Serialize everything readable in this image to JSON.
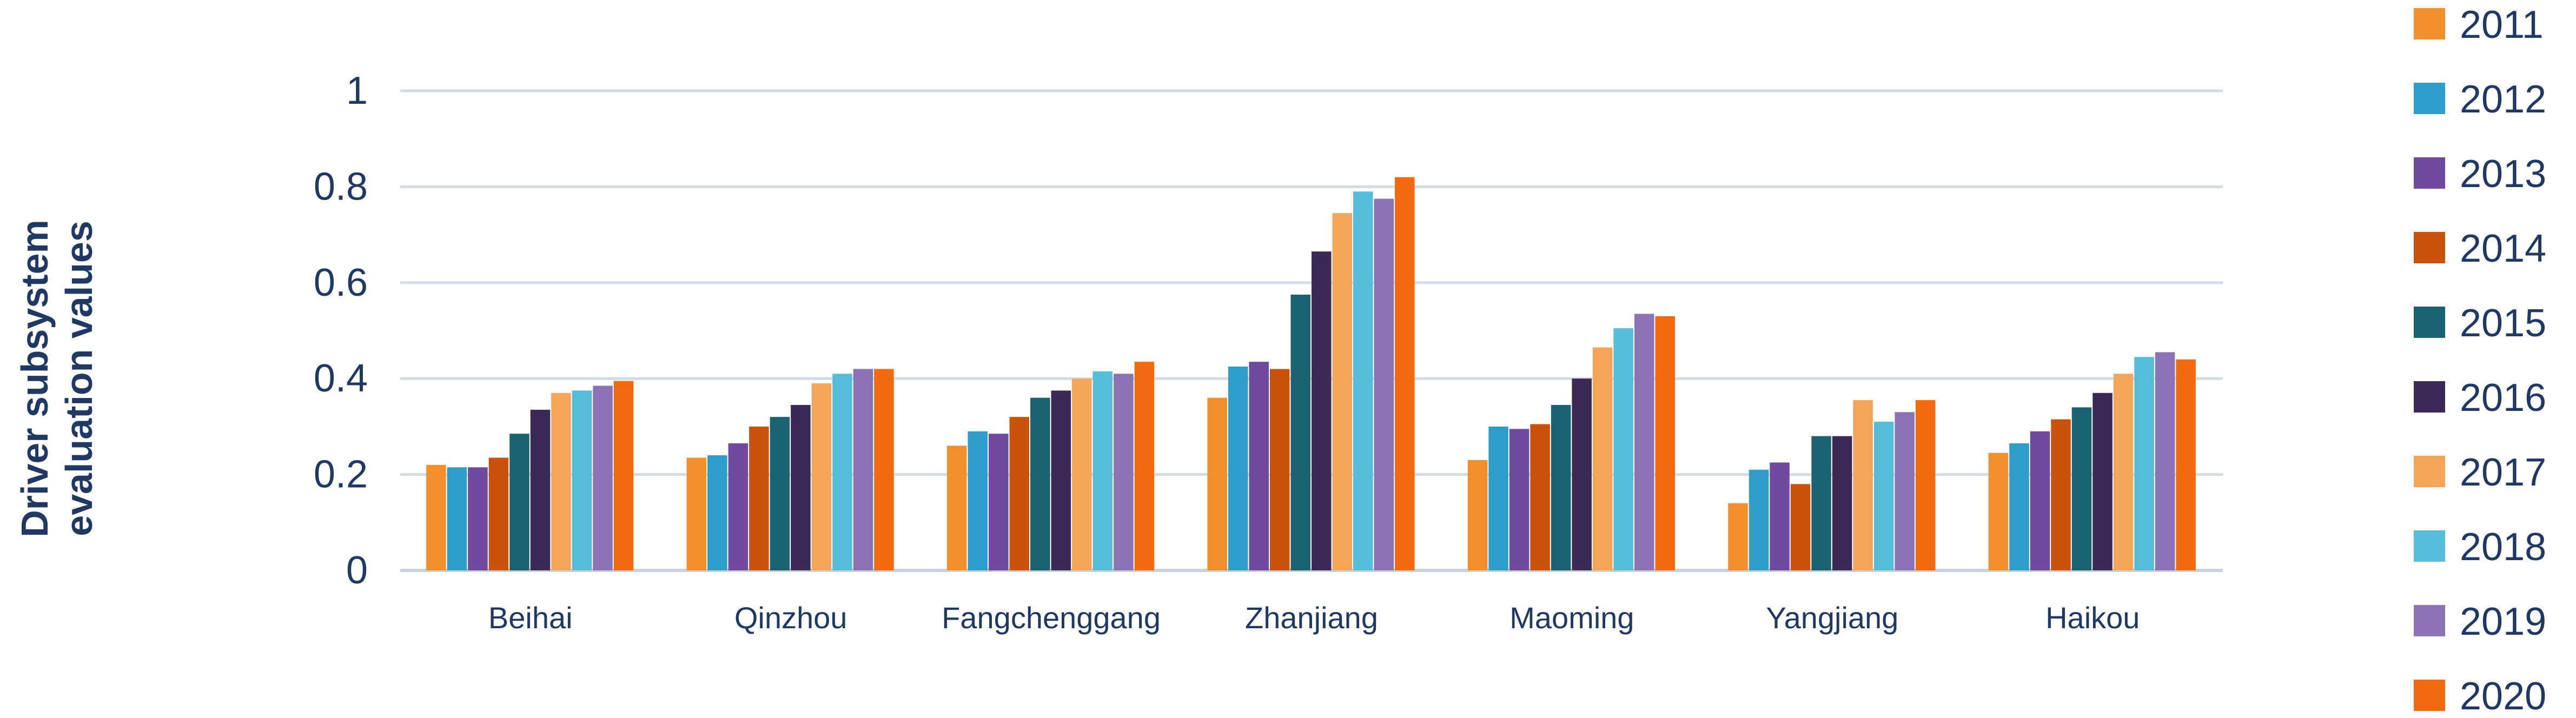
{
  "chart_data": {
    "type": "bar",
    "title": "",
    "xlabel": "",
    "ylabel_lines": [
      "Driver subsystem",
      "evaluation values"
    ],
    "ylim": [
      0,
      1
    ],
    "yticks": [
      0,
      0.2,
      0.4,
      0.6,
      0.8,
      1
    ],
    "ytick_labels": [
      "0",
      "0.2",
      "0.4",
      "0.6",
      "0.8",
      "1"
    ],
    "grid": true,
    "legend_position": "right",
    "categories": [
      "Beihai",
      "Qinzhou",
      "Fangchenggang",
      "Zhanjiang",
      "Maoming",
      "Yangjiang",
      "Haikou"
    ],
    "series": [
      {
        "name": "2011",
        "color": "#f28e2b",
        "values": [
          0.22,
          0.235,
          0.26,
          0.36,
          0.23,
          0.14,
          0.245
        ]
      },
      {
        "name": "2012",
        "color": "#2e9dc9",
        "values": [
          0.215,
          0.24,
          0.29,
          0.425,
          0.3,
          0.21,
          0.265
        ]
      },
      {
        "name": "2013",
        "color": "#6f4a9e",
        "values": [
          0.215,
          0.265,
          0.285,
          0.435,
          0.295,
          0.225,
          0.29
        ]
      },
      {
        "name": "2014",
        "color": "#c9520d",
        "values": [
          0.235,
          0.3,
          0.32,
          0.42,
          0.305,
          0.18,
          0.315
        ]
      },
      {
        "name": "2015",
        "color": "#1b6373",
        "values": [
          0.285,
          0.32,
          0.36,
          0.575,
          0.345,
          0.28,
          0.34
        ]
      },
      {
        "name": "2016",
        "color": "#3b2a55",
        "values": [
          0.335,
          0.345,
          0.375,
          0.665,
          0.4,
          0.28,
          0.37
        ]
      },
      {
        "name": "2017",
        "color": "#f5a55a",
        "values": [
          0.37,
          0.39,
          0.4,
          0.745,
          0.465,
          0.355,
          0.41
        ]
      },
      {
        "name": "2018",
        "color": "#55bcd9",
        "values": [
          0.375,
          0.41,
          0.415,
          0.79,
          0.505,
          0.31,
          0.445
        ]
      },
      {
        "name": "2019",
        "color": "#8b72b5",
        "values": [
          0.385,
          0.42,
          0.41,
          0.775,
          0.535,
          0.33,
          0.455
        ]
      },
      {
        "name": "2020",
        "color": "#f26a10",
        "values": [
          0.395,
          0.42,
          0.435,
          0.82,
          0.53,
          0.355,
          0.44
        ]
      }
    ]
  }
}
